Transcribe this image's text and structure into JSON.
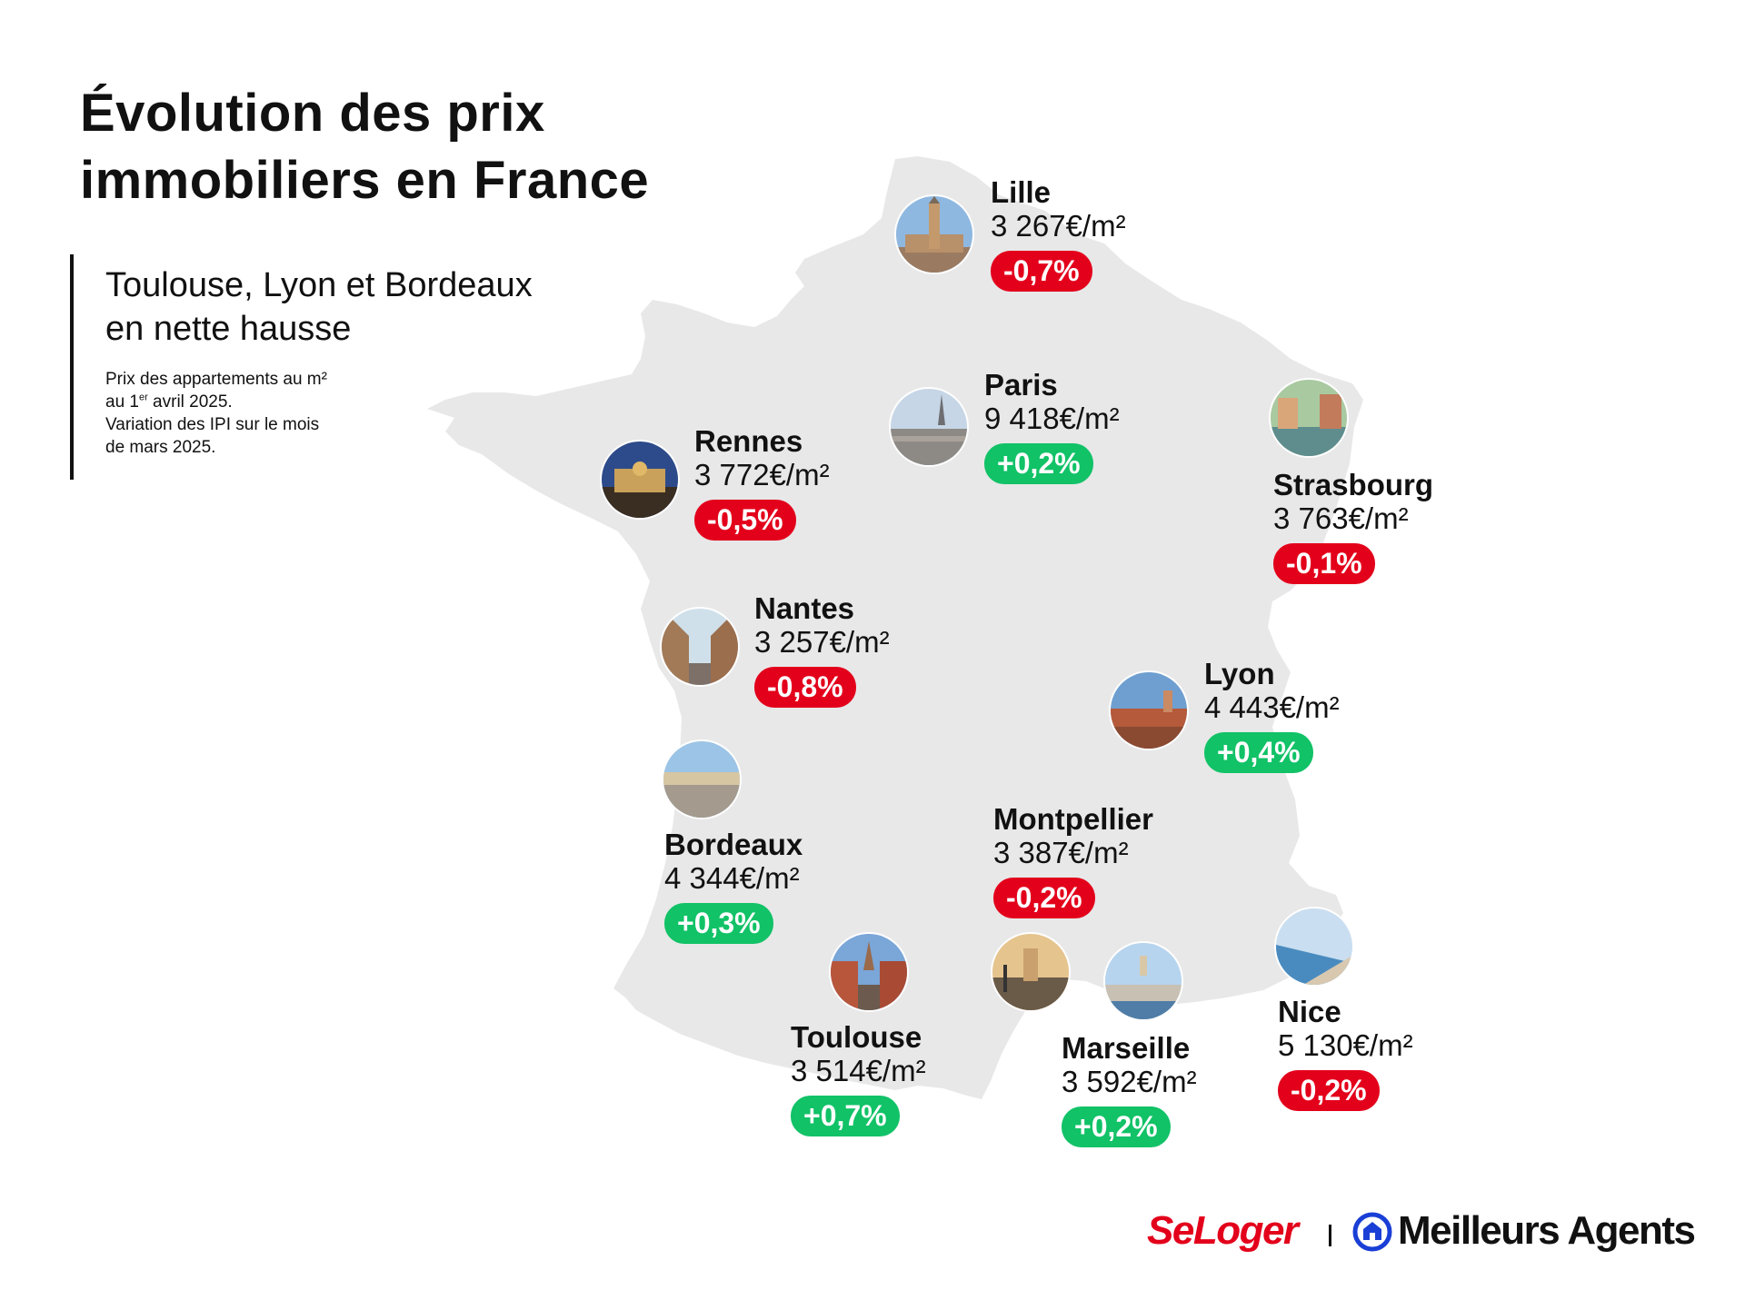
{
  "title": {
    "line1": "Évolution des prix",
    "line2": "immobiliers en France"
  },
  "subtitle": {
    "line1": "Toulouse, Lyon et Bordeaux",
    "line2": "en nette hausse"
  },
  "note": {
    "line1": "Prix des appartements au m²",
    "line2a": "au 1",
    "line2_sup": "er",
    "line2b": " avril 2025.",
    "line3": "Variation des IPI sur le mois",
    "line4": "de mars 2025."
  },
  "cities": {
    "lille": {
      "name": "Lille",
      "price": "3 267€/m²",
      "change": "-0,7%"
    },
    "paris": {
      "name": "Paris",
      "price": "9 418€/m²",
      "change": "+0,2%"
    },
    "strasbourg": {
      "name": "Strasbourg",
      "price": "3 763€/m²",
      "change": "-0,1%"
    },
    "rennes": {
      "name": "Rennes",
      "price": "3 772€/m²",
      "change": "-0,5%"
    },
    "nantes": {
      "name": "Nantes",
      "price": "3 257€/m²",
      "change": "-0,8%"
    },
    "lyon": {
      "name": "Lyon",
      "price": "4 443€/m²",
      "change": "+0,4%"
    },
    "bordeaux": {
      "name": "Bordeaux",
      "price": "4 344€/m²",
      "change": "+0,3%"
    },
    "montpellier": {
      "name": "Montpellier",
      "price": "3 387€/m²",
      "change": "-0,2%"
    },
    "toulouse": {
      "name": "Toulouse",
      "price": "3 514€/m²",
      "change": "+0,7%"
    },
    "marseille": {
      "name": "Marseille",
      "price": "3 592€/m²",
      "change": "+0,2%"
    },
    "nice": {
      "name": "Nice",
      "price": "5 130€/m²",
      "change": "-0,2%"
    }
  },
  "colors": {
    "decrease": "#e3001b",
    "increase": "#11c267",
    "map_fill": "#e8e8e8",
    "seloger_brand": "#e3001b",
    "meilleurs_agents_brand": "#1a3fd6"
  },
  "icons": {
    "ma_logo": "house-in-circle-icon",
    "city_photo": "city-photo-thumbnail"
  },
  "logos": {
    "seloger": "SeLoger",
    "meilleurs_agents": "Meilleurs Agents"
  }
}
